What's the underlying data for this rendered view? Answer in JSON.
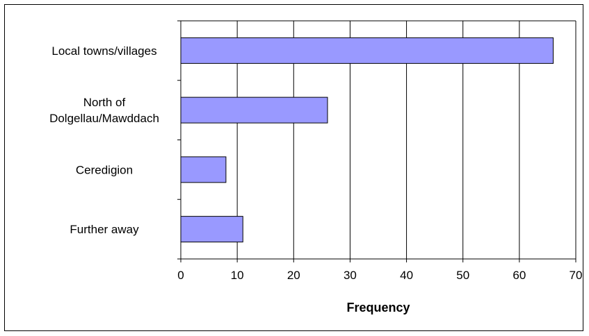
{
  "chart_data": {
    "type": "bar",
    "orientation": "horizontal",
    "categories": [
      [
        "Local towns/villages"
      ],
      [
        "North of",
        "Dolgellau/Mawddach"
      ],
      [
        "Ceredigion"
      ],
      [
        "Further away"
      ]
    ],
    "values": [
      66,
      26,
      8,
      11
    ],
    "xlabel": "Frequency",
    "ylabel": "",
    "title": "",
    "xlim": [
      0,
      70
    ],
    "xticks": [
      0,
      10,
      20,
      30,
      40,
      50,
      60,
      70
    ],
    "grid": "vertical",
    "legend": "none",
    "colors": {
      "bar_fill": "#9999ff",
      "bar_stroke": "#000000",
      "grid": "#000000",
      "axis": "#000000"
    }
  }
}
